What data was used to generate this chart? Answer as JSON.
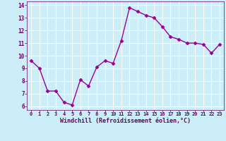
{
  "x": [
    0,
    1,
    2,
    3,
    4,
    5,
    6,
    7,
    8,
    9,
    10,
    11,
    12,
    13,
    14,
    15,
    16,
    17,
    18,
    19,
    20,
    21,
    22,
    23
  ],
  "y": [
    9.6,
    9.0,
    7.2,
    7.2,
    6.3,
    6.1,
    8.1,
    7.6,
    9.1,
    9.6,
    9.4,
    11.2,
    13.8,
    13.5,
    13.2,
    13.0,
    12.3,
    11.5,
    11.3,
    11.0,
    11.0,
    10.9,
    10.2,
    10.9
  ],
  "line_color": "#990099",
  "marker_color": "#990099",
  "background_color": "#cceef8",
  "grid_color": "#ffffff",
  "xlabel": "Windchill (Refroidissement éolien,°C)",
  "xlabel_color": "#660066",
  "tick_color": "#660066",
  "ylim": [
    6,
    14
  ],
  "xlim": [
    -0.5,
    23.5
  ],
  "yticks": [
    6,
    7,
    8,
    9,
    10,
    11,
    12,
    13,
    14
  ],
  "xticks": [
    0,
    1,
    2,
    3,
    4,
    5,
    6,
    7,
    8,
    9,
    10,
    11,
    12,
    13,
    14,
    15,
    16,
    17,
    18,
    19,
    20,
    21,
    22,
    23
  ],
  "xtick_labels": [
    "0",
    "1",
    "2",
    "3",
    "4",
    "5",
    "6",
    "7",
    "8",
    "9",
    "10",
    "11",
    "12",
    "13",
    "14",
    "15",
    "16",
    "17",
    "18",
    "19",
    "20",
    "21",
    "22",
    "23"
  ],
  "linewidth": 1.0,
  "markersize": 2.5
}
